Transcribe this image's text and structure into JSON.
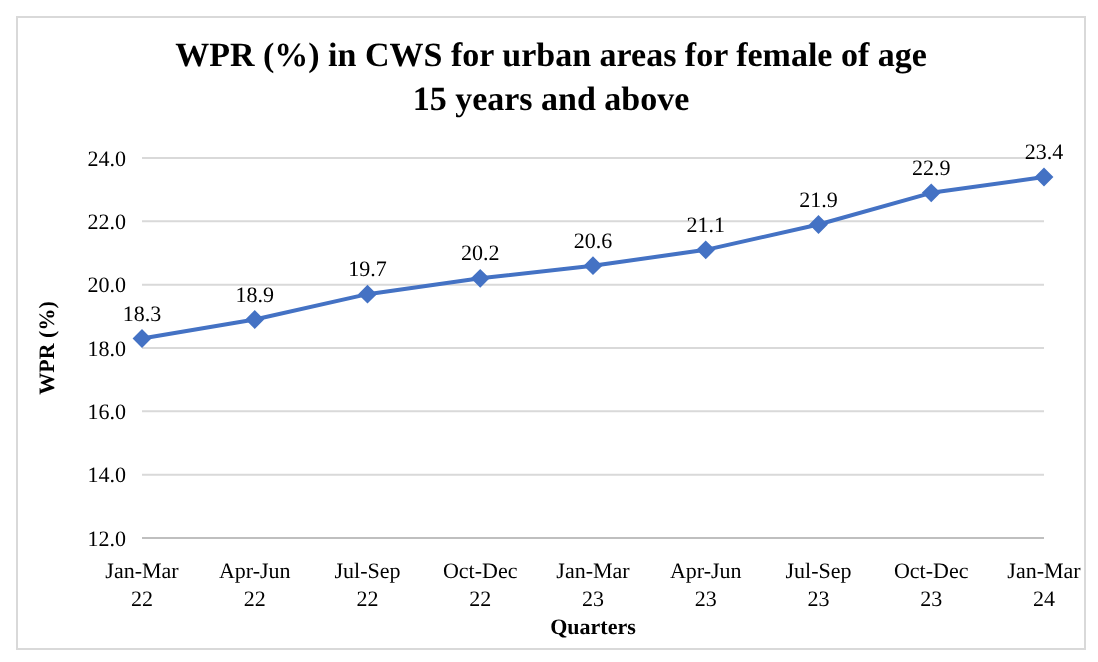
{
  "chart_data": {
    "type": "line",
    "title": "WPR (%) in CWS for urban areas for female of age 15 years and above",
    "xlabel": "Quarters",
    "ylabel": "WPR (%)",
    "categories": [
      "Jan-Mar 22",
      "Apr-Jun 22",
      "Jul-Sep 22",
      "Oct-Dec 22",
      "Jan-Mar 23",
      "Apr-Jun 23",
      "Jul-Sep 23",
      "Oct-Dec 23",
      "Jan-Mar 24"
    ],
    "series": [
      {
        "color": "#4472c4",
        "values": [
          18.3,
          18.9,
          19.7,
          20.2,
          20.6,
          21.1,
          21.9,
          22.9,
          23.4
        ]
      }
    ],
    "ylim": [
      12,
      24
    ],
    "yticks": [
      {
        "value": 12,
        "label": "12.0"
      },
      {
        "value": 14,
        "label": "14.0"
      },
      {
        "value": 16,
        "label": "16.0"
      },
      {
        "value": 18,
        "label": "18.0"
      },
      {
        "value": 20,
        "label": "20.0"
      },
      {
        "value": 22,
        "label": "22.0"
      },
      {
        "value": 24,
        "label": "24.0"
      }
    ],
    "grid": "y",
    "marker": "diamond",
    "line_style": "solid",
    "data_labels": true,
    "legend": false
  }
}
